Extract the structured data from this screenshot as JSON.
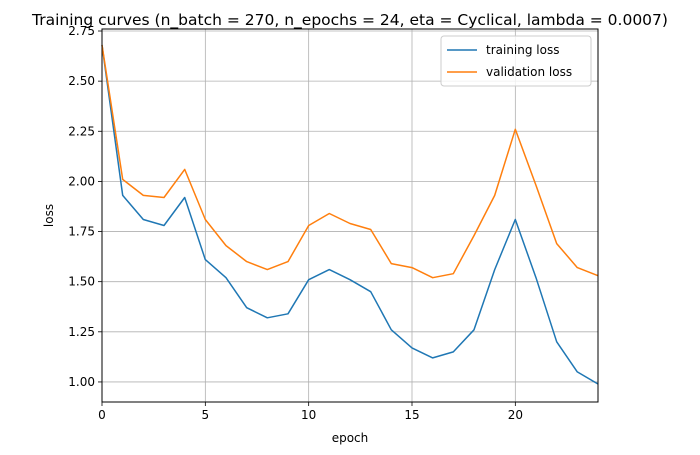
{
  "chart_data": {
    "type": "line",
    "title": "Training curves (n_batch = 270, n_epochs = 24, eta = Cyclical, lambda = 0.0007)",
    "xlabel": "epoch",
    "ylabel": "loss",
    "xlim": [
      0,
      24
    ],
    "ylim": [
      0.9,
      2.76
    ],
    "x_ticks": [
      0,
      5,
      10,
      15,
      20
    ],
    "y_ticks": [
      1.0,
      1.25,
      1.5,
      1.75,
      2.0,
      2.25,
      2.5,
      2.75
    ],
    "x_tick_labels": [
      "0",
      "5",
      "10",
      "15",
      "20"
    ],
    "y_tick_labels": [
      "1.00",
      "1.25",
      "1.50",
      "1.75",
      "2.00",
      "2.25",
      "2.50",
      "2.75"
    ],
    "grid": true,
    "legend_position": "top-right",
    "x": [
      0,
      1,
      2,
      3,
      4,
      5,
      6,
      7,
      8,
      9,
      10,
      11,
      12,
      13,
      14,
      15,
      16,
      17,
      18,
      19,
      20,
      21,
      22,
      23,
      24
    ],
    "series": [
      {
        "name": "training loss",
        "color": "#1f77b4",
        "values": [
          2.68,
          1.93,
          1.81,
          1.78,
          1.92,
          1.61,
          1.52,
          1.37,
          1.32,
          1.34,
          1.51,
          1.56,
          1.51,
          1.45,
          1.26,
          1.17,
          1.12,
          1.15,
          1.26,
          1.56,
          1.81,
          1.52,
          1.2,
          1.05,
          0.99
        ]
      },
      {
        "name": "validation loss",
        "color": "#ff7f0e",
        "values": [
          2.68,
          2.01,
          1.93,
          1.92,
          2.06,
          1.81,
          1.68,
          1.6,
          1.56,
          1.6,
          1.78,
          1.84,
          1.79,
          1.76,
          1.59,
          1.57,
          1.52,
          1.54,
          1.73,
          1.93,
          2.26,
          1.98,
          1.69,
          1.57,
          1.53
        ]
      }
    ]
  }
}
